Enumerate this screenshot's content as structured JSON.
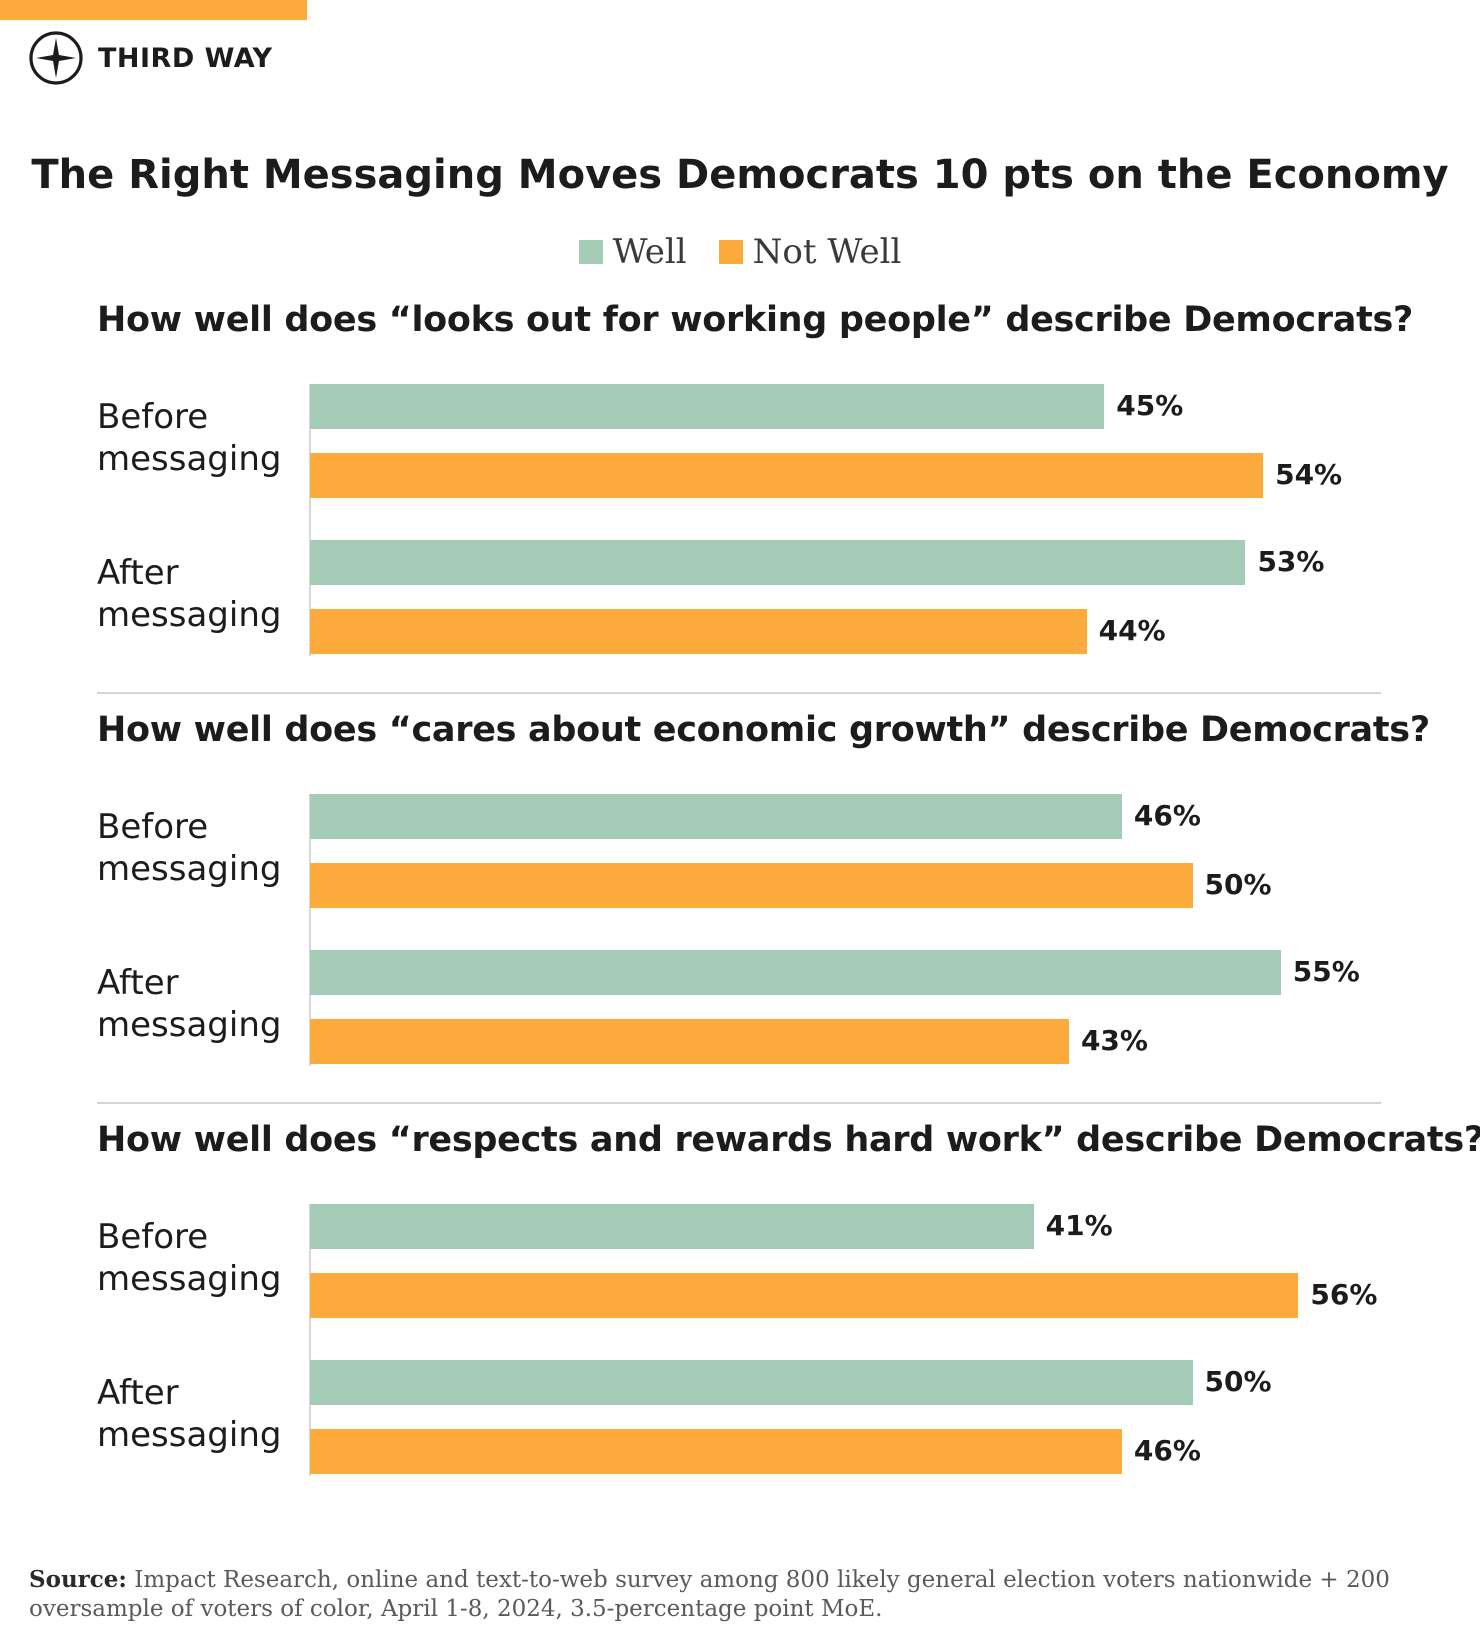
{
  "brand": {
    "name": "THIRD WAY",
    "logo_icon": "compass-star-icon",
    "accent_color": "#FBAA3B"
  },
  "chart_data": {
    "type": "bar",
    "orientation": "horizontal",
    "title": "The Right Messaging Moves Democrats 10 pts on the Economy",
    "legend": [
      {
        "name": "Well",
        "color": "#A5CCB7"
      },
      {
        "name": "Not Well",
        "color": "#FBAA3B"
      }
    ],
    "legend_position": "top-center",
    "xlim": [
      0,
      100
    ],
    "grid": false,
    "value_suffix": "%",
    "panels": [
      {
        "question": "How well does “looks out for working people” describe Democrats?",
        "groups": [
          {
            "label_line1": "Before",
            "label_line2": "messaging",
            "well": 45,
            "not_well": 54
          },
          {
            "label_line1": "After",
            "label_line2": "messaging",
            "well": 53,
            "not_well": 44
          }
        ]
      },
      {
        "question": "How well does “cares about economic growth” describe Democrats?",
        "groups": [
          {
            "label_line1": "Before",
            "label_line2": "messaging",
            "well": 46,
            "not_well": 50
          },
          {
            "label_line1": "After",
            "label_line2": "messaging",
            "well": 55,
            "not_well": 43
          }
        ]
      },
      {
        "question": "How well does “respects and rewards hard work” describe Democrats?",
        "groups": [
          {
            "label_line1": "Before",
            "label_line2": "messaging",
            "well": 41,
            "not_well": 56
          },
          {
            "label_line1": "After",
            "label_line2": "messaging",
            "well": 50,
            "not_well": 46
          }
        ]
      }
    ]
  },
  "source": {
    "label": "Source:",
    "text": "Impact Research, online and text-to-web survey among 800 likely general election voters nationwide + 200 oversample of voters of color, April 1-8, 2024, 3.5-percentage point MoE."
  }
}
